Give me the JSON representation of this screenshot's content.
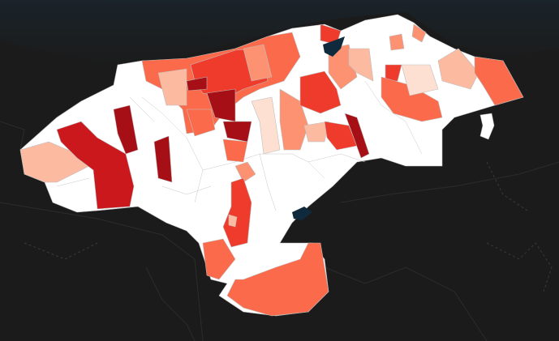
{
  "map": {
    "type": "choropleth",
    "base_theme": "dark",
    "background_color": "#1b1b1b",
    "sea_color": "#1a2329",
    "water_color": "#0f2a3d",
    "scale_colors": [
      "#ffffff",
      "#fee0d2",
      "#fcbba1",
      "#fc9272",
      "#fb6a4a",
      "#ef3b2c",
      "#cb181d",
      "#a50f15"
    ]
  }
}
